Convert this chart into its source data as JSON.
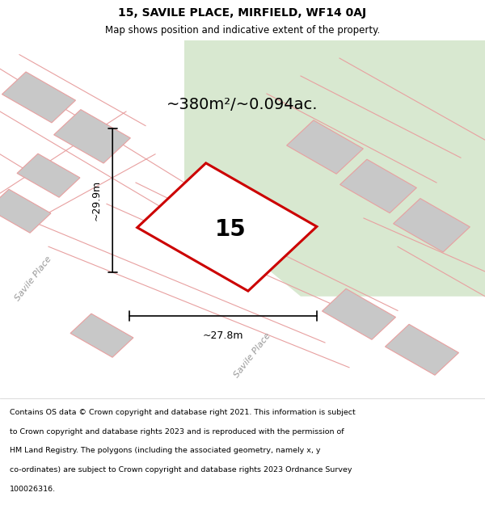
{
  "title_line1": "15, SAVILE PLACE, MIRFIELD, WF14 0AJ",
  "title_line2": "Map shows position and indicative extent of the property.",
  "area_label": "~380m²/~0.094ac.",
  "plot_number": "15",
  "dim_width": "~27.8m",
  "dim_height": "~29.9m",
  "street_label_left": "Savile Place",
  "street_label_bottom": "Savile Place",
  "footer_lines": [
    "Contains OS data © Crown copyright and database right 2021. This information is subject",
    "to Crown copyright and database rights 2023 and is reproduced with the permission of",
    "HM Land Registry. The polygons (including the associated geometry, namely x, y",
    "co-ordinates) are subject to Crown copyright and database rights 2023 Ordnance Survey",
    "100026316."
  ],
  "bg_color_main": "#e8e8e8",
  "bg_color_green": "#d8e8d0",
  "plot_fill": "#ffffff",
  "plot_edge": "#cc0000",
  "building_fill": "#c8c8c8",
  "building_edge": "#e8a0a0",
  "road_line_color": "#e8a0a0",
  "dim_line_color": "#000000",
  "footer_bg": "#ffffff",
  "title_bg": "#ffffff"
}
